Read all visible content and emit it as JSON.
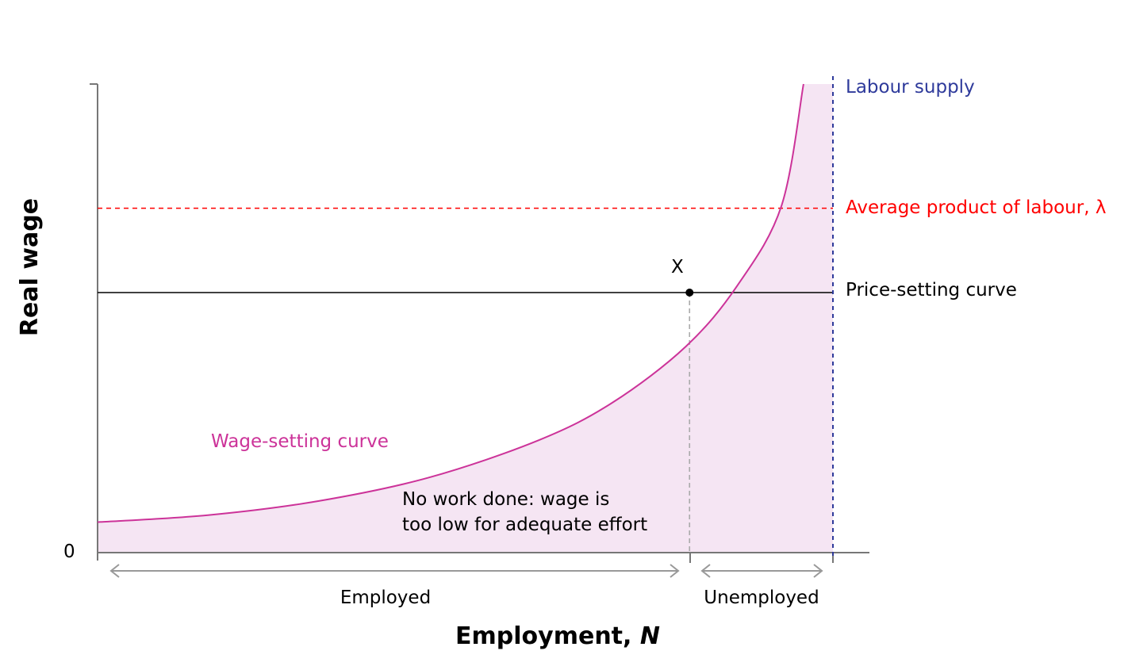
{
  "chart_data": {
    "type": "line",
    "title": "",
    "xlabel": "Employment, ",
    "xlabel_italic": "N",
    "ylabel": "Real wage",
    "y_zero_label": "0",
    "grid": false,
    "legend": "none",
    "series": [
      {
        "name": "Wage-setting curve",
        "color": "#cc3399",
        "style": "solid",
        "x": [
          0,
          0.15,
          0.3,
          0.45,
          0.6,
          0.7,
          0.8,
          0.87,
          0.93,
          0.96
        ],
        "y": [
          0.065,
          0.08,
          0.11,
          0.16,
          0.24,
          0.32,
          0.44,
          0.57,
          0.74,
          1.0
        ]
      },
      {
        "name": "Price-setting curve",
        "color": "#000000",
        "style": "solid",
        "y_constant": 0.555
      },
      {
        "name": "Average product of labour, λ",
        "color": "#ff0000",
        "style": "dashed",
        "y_constant": 0.735
      },
      {
        "name": "Labour supply",
        "color": "#2e3a9b",
        "style": "dashed",
        "x_constant": 1.0
      }
    ],
    "points": [
      {
        "label": "X",
        "x": 0.805,
        "y": 0.555
      }
    ],
    "annotations": {
      "region_note_line1": "No work done: wage is",
      "region_note_line2": "too low for adequate effort",
      "employed": "Employed",
      "unemployed": "Unemployed"
    },
    "colors": {
      "shade": "#f5e5f3",
      "axis": "#777777",
      "arrows": "#999999"
    }
  }
}
